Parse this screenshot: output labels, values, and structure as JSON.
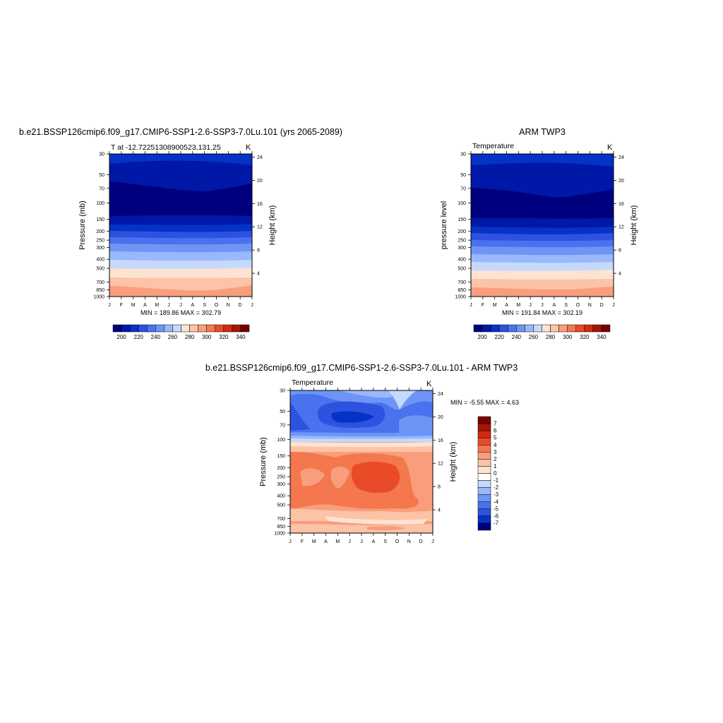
{
  "panels": [
    {
      "title": "b.e21.BSSP126cmip6.f09_g17.CMIP6-SSP1-2.6-SSP3-7.0Lu.101 (yrs 2065-2089)",
      "left_label": "T at -12.72251308900523,131.25",
      "right_label": "K",
      "ylabel": "Pressure (mb)",
      "ylabel_right": "Height (km)",
      "minmax": "MIN = 189.86 MAX = 302.79"
    },
    {
      "title": "ARM TWP3",
      "left_label": "Temperature",
      "right_label": "K",
      "ylabel": "pressure level",
      "ylabel_right": "Height (km)",
      "minmax": "MIN = 191.84 MAX = 302.19"
    },
    {
      "title": "b.e21.BSSP126cmip6.f09_g17.CMIP6-SSP1-2.6-SSP3-7.0Lu.101 - ARM TWP3",
      "left_label": "Temperature",
      "right_label": "K",
      "ylabel": "Pressure (mb)",
      "ylabel_right": "Height (km)",
      "minmax": "MIN =  -5.55 MAX =   4.63"
    }
  ],
  "axes": {
    "months": [
      "J",
      "F",
      "M",
      "A",
      "M",
      "J",
      "J",
      "A",
      "S",
      "O",
      "N",
      "D",
      "J"
    ],
    "pressure_ticks": [
      "30",
      "50",
      "70",
      "100",
      "150",
      "200",
      "250",
      "300",
      "400",
      "500",
      "700",
      "850",
      "1000"
    ],
    "height_ticks": [
      "4",
      "8",
      "12",
      "16",
      "20",
      "24"
    ]
  },
  "colorbars": {
    "temperature": {
      "labels": [
        "200",
        "220",
        "240",
        "260",
        "280",
        "300",
        "320",
        "340"
      ],
      "colors": [
        "#00007f",
        "#0018a8",
        "#0632c6",
        "#2e52e0",
        "#4a72ee",
        "#6e95f6",
        "#9ab8fa",
        "#c4d9fc",
        "#fde3d2",
        "#fcc3a6",
        "#f89e7c",
        "#f4774e",
        "#e94a28",
        "#cf2b12",
        "#a81406",
        "#7a0000"
      ]
    },
    "difference": {
      "labels": [
        "7",
        "6",
        "5",
        "4",
        "3",
        "2",
        "1",
        "0",
        "-1",
        "-2",
        "-3",
        "-4",
        "-5",
        "-6",
        "-7"
      ],
      "colors": [
        "#7a0000",
        "#a81406",
        "#cf2b12",
        "#e94a28",
        "#f4774e",
        "#f89e7c",
        "#fcc3a6",
        "#fde3d2",
        "#ffffff",
        "#c4d9fc",
        "#9ab8fa",
        "#6e95f6",
        "#4a72ee",
        "#2e52e0",
        "#0632c6",
        "#00007f"
      ]
    }
  },
  "chart_data": [
    {
      "type": "heatmap",
      "title": "b.e21.BSSP126cmip6.f09_g17.CMIP6-SSP1-2.6-SSP3-7.0Lu.101 (yrs 2065-2089)",
      "xlabel": "",
      "ylabel": "Pressure (mb)",
      "units": "K",
      "x": [
        "J",
        "F",
        "M",
        "A",
        "M",
        "J",
        "J",
        "A",
        "S",
        "O",
        "N",
        "D",
        "J"
      ],
      "y_pressure_mb": [
        30,
        50,
        70,
        100,
        150,
        200,
        250,
        300,
        400,
        500,
        700,
        850,
        1000
      ],
      "approx_temperature_K_at_levels": [
        212,
        206,
        196,
        192,
        203,
        214,
        226,
        238,
        256,
        268,
        284,
        292,
        298
      ],
      "min": 189.86,
      "max": 302.79
    },
    {
      "type": "heatmap",
      "title": "ARM TWP3",
      "ylabel": "pressure level",
      "units": "K",
      "x": [
        "J",
        "F",
        "M",
        "A",
        "M",
        "J",
        "J",
        "A",
        "S",
        "O",
        "N",
        "D",
        "J"
      ],
      "y_pressure_mb": [
        30,
        50,
        70,
        100,
        150,
        200,
        250,
        300,
        400,
        500,
        700,
        850,
        1000
      ],
      "approx_temperature_K_at_levels": [
        214,
        206,
        195,
        192,
        202,
        213,
        225,
        237,
        255,
        267,
        283,
        291,
        297
      ],
      "min": 191.84,
      "max": 302.19
    },
    {
      "type": "heatmap",
      "title": "b.e21.BSSP126cmip6.f09_g17.CMIP6-SSP1-2.6-SSP3-7.0Lu.101 - ARM TWP3",
      "ylabel": "Pressure (mb)",
      "units": "K",
      "x": [
        "J",
        "F",
        "M",
        "A",
        "M",
        "J",
        "J",
        "A",
        "S",
        "O",
        "N",
        "D",
        "J"
      ],
      "y_pressure_mb": [
        30,
        50,
        70,
        100,
        150,
        200,
        250,
        300,
        400,
        500,
        700,
        850,
        1000
      ],
      "approx_difference_K_at_levels": [
        -4,
        -5,
        -4,
        -1,
        3,
        3,
        3,
        3,
        3,
        3,
        1,
        0,
        2
      ],
      "min": -5.55,
      "max": 4.63
    }
  ]
}
